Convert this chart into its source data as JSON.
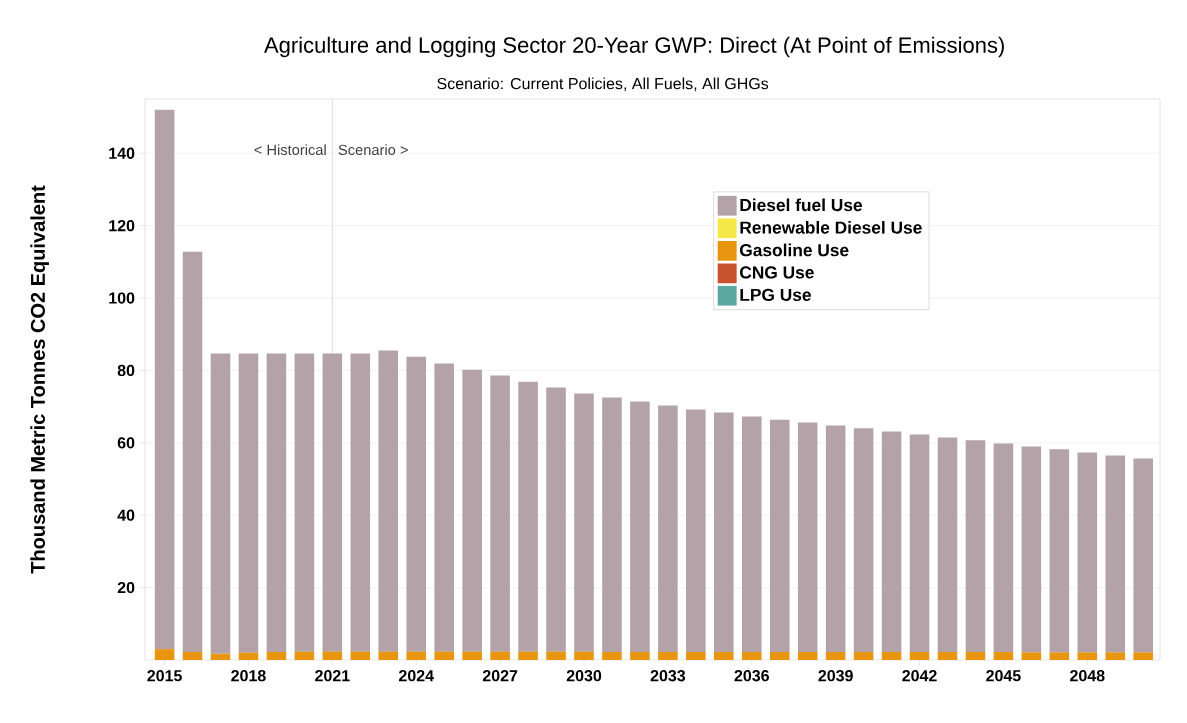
{
  "chart_data": {
    "type": "bar",
    "stacked": true,
    "title": "Agriculture and Logging Sector 20-Year GWP: Direct (At Point of Emissions)",
    "subtitle": "Scenario: Current Policies, All Fuels, All GHGs",
    "ylabel": "Thousand Metric Tonnes CO2 Equivalent",
    "x": [
      2015,
      2016,
      2017,
      2018,
      2019,
      2020,
      2021,
      2022,
      2023,
      2024,
      2025,
      2026,
      2027,
      2028,
      2029,
      2030,
      2031,
      2032,
      2033,
      2034,
      2035,
      2036,
      2037,
      2038,
      2039,
      2040,
      2041,
      2042,
      2043,
      2044,
      2045,
      2046,
      2047,
      2048,
      2049,
      2050
    ],
    "xlim": [
      2014.3,
      2050.6
    ],
    "xticks": [
      2015,
      2018,
      2021,
      2024,
      2027,
      2030,
      2033,
      2036,
      2039,
      2042,
      2045,
      2048
    ],
    "ylim": [
      0,
      155
    ],
    "yticks": [
      20,
      40,
      60,
      80,
      100,
      120,
      140
    ],
    "grid": "y",
    "legend": "top right",
    "series": [
      {
        "name": "LPG Use",
        "color": "#5ba8a0",
        "values": [
          0,
          0,
          0,
          0,
          0,
          0,
          0,
          0,
          0,
          0,
          0,
          0,
          0,
          0,
          0,
          0,
          0,
          0,
          0,
          0,
          0,
          0,
          0,
          0,
          0,
          0,
          0,
          0,
          0,
          0,
          0,
          0,
          0,
          0,
          0,
          0
        ]
      },
      {
        "name": "CNG Use",
        "color": "#c9532e",
        "values": [
          0,
          0,
          0,
          0,
          0,
          0,
          0,
          0,
          0,
          0,
          0,
          0,
          0,
          0,
          0,
          0,
          0,
          0,
          0,
          0,
          0,
          0,
          0,
          0,
          0,
          0,
          0,
          0,
          0,
          0,
          0,
          0,
          0,
          0,
          0,
          0
        ]
      },
      {
        "name": "Gasoline Use",
        "color": "#e8960f",
        "values": [
          3.0,
          2.2,
          1.7,
          2.0,
          2.2,
          2.3,
          2.3,
          2.3,
          2.3,
          2.3,
          2.3,
          2.3,
          2.3,
          2.3,
          2.3,
          2.3,
          2.2,
          2.2,
          2.2,
          2.2,
          2.2,
          2.2,
          2.2,
          2.2,
          2.2,
          2.2,
          2.2,
          2.2,
          2.2,
          2.2,
          2.2,
          2.1,
          2.1,
          2.1,
          2.1,
          2.1
        ]
      },
      {
        "name": "Renewable Diesel Use",
        "color": "#f7e84a",
        "values": [
          0,
          0,
          0,
          0,
          0,
          0,
          0,
          0,
          0,
          0,
          0,
          0,
          0,
          0,
          0,
          0,
          0,
          0,
          0,
          0,
          0,
          0,
          0,
          0,
          0,
          0,
          0,
          0,
          0,
          0,
          0,
          0,
          0,
          0,
          0,
          0
        ]
      },
      {
        "name": "Diesel fuel Use",
        "color": "#b3a2a8",
        "values": [
          149.0,
          110.6,
          83.0,
          82.7,
          82.5,
          82.4,
          82.4,
          82.4,
          83.2,
          81.5,
          79.6,
          77.9,
          76.3,
          74.6,
          73.0,
          71.3,
          70.3,
          69.2,
          68.1,
          67.0,
          66.2,
          65.1,
          64.2,
          63.4,
          62.6,
          61.8,
          60.9,
          60.1,
          59.3,
          58.5,
          57.6,
          56.9,
          56.1,
          55.2,
          54.4,
          53.6
        ]
      }
    ],
    "ref_lines": [
      {
        "axis": "x",
        "value": 2021,
        "color": "#d4d4d4"
      }
    ],
    "annotations": [
      {
        "text": "< Historical",
        "x": 2021,
        "y": 141
      },
      {
        "text": "Scenario >",
        "x": 2021,
        "y": 141
      }
    ]
  }
}
